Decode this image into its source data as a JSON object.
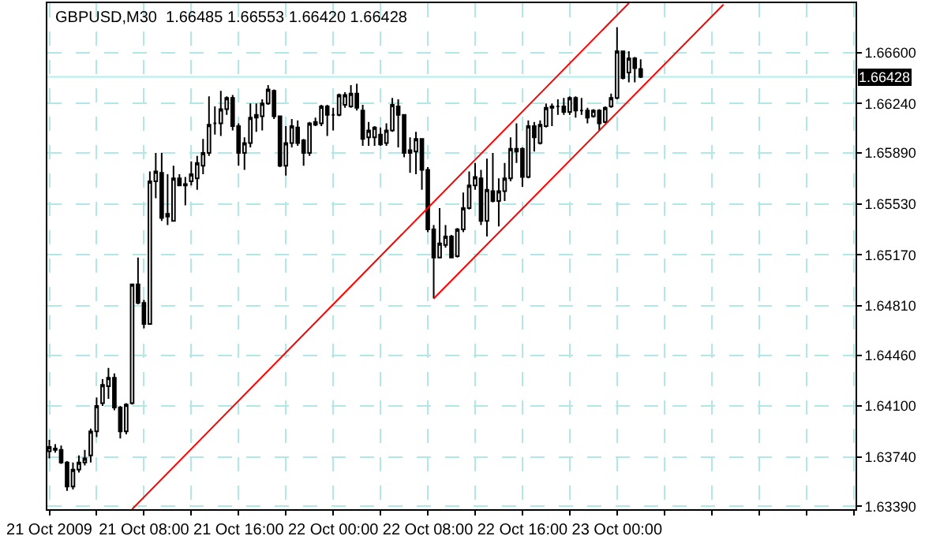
{
  "chart_data": {
    "type": "candlestick",
    "title": "GBPUSD,M30  1.66485 1.66553 1.66420 1.66428",
    "x": [
      "2009-10-21T00:00",
      "2009-10-21T00:30",
      "2009-10-21T01:00",
      "2009-10-21T01:30",
      "2009-10-21T02:00",
      "2009-10-21T02:30",
      "2009-10-21T03:00",
      "2009-10-21T03:30",
      "2009-10-21T04:00",
      "2009-10-21T04:30",
      "2009-10-21T05:00",
      "2009-10-21T05:30",
      "2009-10-21T06:00",
      "2009-10-21T06:30",
      "2009-10-21T07:00",
      "2009-10-21T07:30",
      "2009-10-21T08:00",
      "2009-10-21T08:30",
      "2009-10-21T09:00",
      "2009-10-21T09:30",
      "2009-10-21T10:00",
      "2009-10-21T10:30",
      "2009-10-21T11:00",
      "2009-10-21T11:30",
      "2009-10-21T12:00",
      "2009-10-21T12:30",
      "2009-10-21T13:00",
      "2009-10-21T13:30",
      "2009-10-21T14:00",
      "2009-10-21T14:30",
      "2009-10-21T15:00",
      "2009-10-21T15:30",
      "2009-10-21T16:00",
      "2009-10-21T16:30",
      "2009-10-21T17:00",
      "2009-10-21T17:30",
      "2009-10-21T18:00",
      "2009-10-21T18:30",
      "2009-10-21T19:00",
      "2009-10-21T19:30",
      "2009-10-21T20:00",
      "2009-10-21T20:30",
      "2009-10-21T21:00",
      "2009-10-21T21:30",
      "2009-10-21T22:00",
      "2009-10-21T22:30",
      "2009-10-21T23:00",
      "2009-10-21T23:30",
      "2009-10-22T00:00",
      "2009-10-22T00:30",
      "2009-10-22T01:00",
      "2009-10-22T01:30",
      "2009-10-22T02:00",
      "2009-10-22T02:30",
      "2009-10-22T03:00",
      "2009-10-22T03:30",
      "2009-10-22T04:00",
      "2009-10-22T04:30",
      "2009-10-22T05:00",
      "2009-10-22T05:30",
      "2009-10-22T06:00",
      "2009-10-22T06:30",
      "2009-10-22T07:00",
      "2009-10-22T07:30",
      "2009-10-22T08:00",
      "2009-10-22T08:30",
      "2009-10-22T09:00",
      "2009-10-22T09:30",
      "2009-10-22T10:00",
      "2009-10-22T10:30",
      "2009-10-22T11:00",
      "2009-10-22T11:30",
      "2009-10-22T12:00",
      "2009-10-22T12:30",
      "2009-10-22T13:00",
      "2009-10-22T13:30",
      "2009-10-22T14:00",
      "2009-10-22T14:30",
      "2009-10-22T15:00",
      "2009-10-22T15:30",
      "2009-10-22T16:00",
      "2009-10-22T16:30",
      "2009-10-22T17:00",
      "2009-10-22T17:30",
      "2009-10-22T18:00",
      "2009-10-22T18:30",
      "2009-10-22T19:00",
      "2009-10-22T19:30",
      "2009-10-22T20:00",
      "2009-10-22T20:30",
      "2009-10-22T21:00",
      "2009-10-22T21:30",
      "2009-10-22T22:00",
      "2009-10-22T22:30",
      "2009-10-22T23:00",
      "2009-10-22T23:30",
      "2009-10-23T00:00",
      "2009-10-23T00:30",
      "2009-10-23T01:00",
      "2009-10-23T01:30",
      "2009-10-23T02:00"
    ],
    "ohlc": [
      [
        1.6378,
        1.6386,
        1.6373,
        1.6381
      ],
      [
        1.638,
        1.6383,
        1.6377,
        1.6379
      ],
      [
        1.6379,
        1.6382,
        1.6369,
        1.637
      ],
      [
        1.637,
        1.6371,
        1.635,
        1.6353
      ],
      [
        1.6353,
        1.637,
        1.6351,
        1.6365
      ],
      [
        1.6365,
        1.6375,
        1.6363,
        1.637
      ],
      [
        1.637,
        1.6379,
        1.6368,
        1.6373
      ],
      [
        1.6375,
        1.6394,
        1.637,
        1.6392
      ],
      [
        1.6392,
        1.6416,
        1.6388,
        1.641
      ],
      [
        1.6412,
        1.6429,
        1.641,
        1.6425
      ],
      [
        1.6424,
        1.6437,
        1.6415,
        1.643
      ],
      [
        1.643,
        1.6433,
        1.6407,
        1.6409
      ],
      [
        1.6409,
        1.641,
        1.6387,
        1.6392
      ],
      [
        1.6392,
        1.6412,
        1.639,
        1.6411
      ],
      [
        1.6412,
        1.6496,
        1.6411,
        1.6496
      ],
      [
        1.6496,
        1.6515,
        1.6482,
        1.6483
      ],
      [
        1.6483,
        1.6485,
        1.6465,
        1.6468
      ],
      [
        1.6468,
        1.6576,
        1.6468,
        1.6569
      ],
      [
        1.6569,
        1.6589,
        1.6557,
        1.6576
      ],
      [
        1.6575,
        1.6589,
        1.6541,
        1.6543
      ],
      [
        1.6544,
        1.6574,
        1.6538,
        1.6546
      ],
      [
        1.6541,
        1.658,
        1.6541,
        1.6571
      ],
      [
        1.6571,
        1.6574,
        1.6566,
        1.6566
      ],
      [
        1.6567,
        1.6572,
        1.6552,
        1.6566
      ],
      [
        1.6569,
        1.6583,
        1.6566,
        1.6574
      ],
      [
        1.6571,
        1.6587,
        1.6563,
        1.6582
      ],
      [
        1.658,
        1.6599,
        1.6574,
        1.6589
      ],
      [
        1.6589,
        1.6629,
        1.6587,
        1.6609
      ],
      [
        1.661,
        1.6622,
        1.6602,
        1.661
      ],
      [
        1.661,
        1.6633,
        1.6601,
        1.662
      ],
      [
        1.662,
        1.6629,
        1.6616,
        1.6628
      ],
      [
        1.6628,
        1.663,
        1.6605,
        1.6608
      ],
      [
        1.6608,
        1.661,
        1.658,
        1.6589
      ],
      [
        1.6589,
        1.66,
        1.6577,
        1.6596
      ],
      [
        1.6596,
        1.6624,
        1.6593,
        1.6614
      ],
      [
        1.6614,
        1.6624,
        1.6604,
        1.6616
      ],
      [
        1.6615,
        1.6627,
        1.6605,
        1.6624
      ],
      [
        1.6624,
        1.6637,
        1.6623,
        1.6634
      ],
      [
        1.6633,
        1.6634,
        1.6613,
        1.6615
      ],
      [
        1.6615,
        1.6615,
        1.6579,
        1.658
      ],
      [
        1.658,
        1.6608,
        1.6573,
        1.6596
      ],
      [
        1.6596,
        1.6613,
        1.6593,
        1.6608
      ],
      [
        1.6607,
        1.6612,
        1.6594,
        1.6596
      ],
      [
        1.6598,
        1.6599,
        1.658,
        1.6589
      ],
      [
        1.6589,
        1.6611,
        1.6587,
        1.661
      ],
      [
        1.6609,
        1.6614,
        1.6608,
        1.6611
      ],
      [
        1.661,
        1.6623,
        1.6608,
        1.6622
      ],
      [
        1.6622,
        1.6623,
        1.6601,
        1.6616
      ],
      [
        1.6616,
        1.6621,
        1.6605,
        1.6616
      ],
      [
        1.6616,
        1.6631,
        1.6615,
        1.663
      ],
      [
        1.6623,
        1.6632,
        1.6621,
        1.663
      ],
      [
        1.6622,
        1.6637,
        1.6621,
        1.6631
      ],
      [
        1.6631,
        1.6638,
        1.6619,
        1.6621
      ],
      [
        1.6619,
        1.6623,
        1.6594,
        1.6599
      ],
      [
        1.66,
        1.6611,
        1.6594,
        1.6605
      ],
      [
        1.66,
        1.6608,
        1.6594,
        1.6607
      ],
      [
        1.6602,
        1.6607,
        1.6594,
        1.6595
      ],
      [
        1.6596,
        1.661,
        1.6594,
        1.6605
      ],
      [
        1.6605,
        1.6628,
        1.6604,
        1.6623
      ],
      [
        1.6622,
        1.6627,
        1.6593,
        1.6616
      ],
      [
        1.6616,
        1.6616,
        1.6586,
        1.6589
      ],
      [
        1.6589,
        1.66,
        1.6575,
        1.6591
      ],
      [
        1.659,
        1.6604,
        1.6574,
        1.6599
      ],
      [
        1.6599,
        1.6599,
        1.6563,
        1.6577
      ],
      [
        1.6577,
        1.6579,
        1.6533,
        1.6535
      ],
      [
        1.6535,
        1.6538,
        1.6486,
        1.6515
      ],
      [
        1.6515,
        1.655,
        1.6515,
        1.6525
      ],
      [
        1.6524,
        1.6538,
        1.6522,
        1.653
      ],
      [
        1.653,
        1.6531,
        1.6515,
        1.6515
      ],
      [
        1.6516,
        1.6536,
        1.6515,
        1.6535
      ],
      [
        1.6535,
        1.6561,
        1.6533,
        1.655
      ],
      [
        1.655,
        1.6576,
        1.6549,
        1.6566
      ],
      [
        1.6566,
        1.6582,
        1.6563,
        1.6572
      ],
      [
        1.6571,
        1.6577,
        1.6538,
        1.6541
      ],
      [
        1.6541,
        1.6585,
        1.653,
        1.6563
      ],
      [
        1.6562,
        1.6589,
        1.6554,
        1.6555
      ],
      [
        1.6555,
        1.6571,
        1.6537,
        1.6562
      ],
      [
        1.6562,
        1.6582,
        1.6555,
        1.6571
      ],
      [
        1.6571,
        1.66,
        1.6569,
        1.6592
      ],
      [
        1.659,
        1.661,
        1.6582,
        1.6592
      ],
      [
        1.6592,
        1.6593,
        1.6565,
        1.6572
      ],
      [
        1.6572,
        1.6612,
        1.6571,
        1.6608
      ],
      [
        1.6608,
        1.6611,
        1.659,
        1.66
      ],
      [
        1.6596,
        1.6612,
        1.6595,
        1.6609
      ],
      [
        1.6608,
        1.6624,
        1.6607,
        1.6621
      ],
      [
        1.6621,
        1.6624,
        1.6608,
        1.6622
      ],
      [
        1.6622,
        1.6627,
        1.6616,
        1.6622
      ],
      [
        1.6622,
        1.6628,
        1.6616,
        1.6618
      ],
      [
        1.6618,
        1.6629,
        1.6616,
        1.6628
      ],
      [
        1.6628,
        1.6629,
        1.6614,
        1.6619
      ],
      [
        1.6619,
        1.6628,
        1.6616,
        1.6619
      ],
      [
        1.6619,
        1.6621,
        1.661,
        1.6614
      ],
      [
        1.6615,
        1.662,
        1.6614,
        1.6619
      ],
      [
        1.6619,
        1.662,
        1.6605,
        1.661
      ],
      [
        1.6611,
        1.6622,
        1.661,
        1.6621
      ],
      [
        1.6622,
        1.6631,
        1.6621,
        1.6628
      ],
      [
        1.6628,
        1.6678,
        1.6627,
        1.6661
      ],
      [
        1.6661,
        1.6661,
        1.6641,
        1.6642
      ],
      [
        1.6646,
        1.6661,
        1.6639,
        1.6656
      ],
      [
        1.6656,
        1.6657,
        1.6639,
        1.6649
      ],
      [
        1.66485,
        1.66553,
        1.6642,
        1.66428
      ]
    ],
    "series": [
      {
        "type": "line",
        "color": "#ff0000",
        "x": [
          "2009-10-21T07:00",
          "2009-10-23T01:00"
        ],
        "values": [
          1.6337,
          1.6695
        ]
      },
      {
        "type": "line",
        "color": "#ff0000",
        "x": [
          "2009-10-22T08:30",
          "2009-10-23T09:00"
        ],
        "values": [
          1.6486,
          1.6694
        ]
      }
    ],
    "ylim": [
      1.6337,
      1.6695
    ],
    "yticks": [
      {
        "value": 1.6339,
        "label": "1.63390"
      },
      {
        "value": 1.6374,
        "label": "1.63740"
      },
      {
        "value": 1.641,
        "label": "1.64100"
      },
      {
        "value": 1.6446,
        "label": "1.64460"
      },
      {
        "value": 1.6481,
        "label": "1.64810"
      },
      {
        "value": 1.6517,
        "label": "1.65170"
      },
      {
        "value": 1.6553,
        "label": "1.65530"
      },
      {
        "value": 1.6589,
        "label": "1.65890"
      },
      {
        "value": 1.6624,
        "label": "1.66240"
      },
      {
        "value": 1.666,
        "label": "1.66600"
      }
    ],
    "xlim": [
      "2009-10-20T23:50",
      "2009-10-23T20:10"
    ],
    "xticks": [
      {
        "value": "2009-10-21T00:00",
        "label": "21 Oct 2009"
      },
      {
        "value": "2009-10-21T04:00",
        "label": null
      },
      {
        "value": "2009-10-21T08:00",
        "label": "21 Oct 08:00"
      },
      {
        "value": "2009-10-21T12:00",
        "label": null
      },
      {
        "value": "2009-10-21T16:00",
        "label": "21 Oct 16:00"
      },
      {
        "value": "2009-10-21T20:00",
        "label": null
      },
      {
        "value": "2009-10-22T00:00",
        "label": "22 Oct 00:00"
      },
      {
        "value": "2009-10-22T04:00",
        "label": null
      },
      {
        "value": "2009-10-22T08:00",
        "label": "22 Oct 08:00"
      },
      {
        "value": "2009-10-22T12:00",
        "label": null
      },
      {
        "value": "2009-10-22T16:00",
        "label": "22 Oct 16:00"
      },
      {
        "value": "2009-10-22T20:00",
        "label": null
      },
      {
        "value": "2009-10-23T00:00",
        "label": "23 Oct 00:00"
      },
      {
        "value": "2009-10-23T04:00",
        "label": null
      },
      {
        "value": "2009-10-23T08:00",
        "label": null
      },
      {
        "value": "2009-10-23T12:00",
        "label": null
      },
      {
        "value": "2009-10-23T16:00",
        "label": null
      },
      {
        "value": "2009-10-23T20:00",
        "label": null
      }
    ],
    "grid": true,
    "ref_lines": [
      {
        "axis": "y",
        "value": 1.66428,
        "label": "1.66428",
        "color": "#b0f0f0"
      }
    ]
  }
}
